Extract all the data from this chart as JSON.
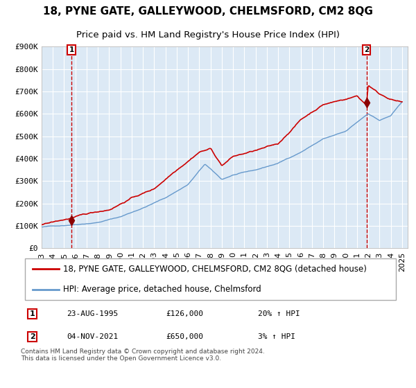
{
  "title": "18, PYNE GATE, GALLEYWOOD, CHELMSFORD, CM2 8QG",
  "subtitle": "Price paid vs. HM Land Registry's House Price Index (HPI)",
  "xlabel": "",
  "ylabel": "",
  "background_color": "#dce9f5",
  "plot_bg_color": "#dce9f5",
  "red_line_color": "#cc0000",
  "blue_line_color": "#6699cc",
  "vline_color": "#cc0000",
  "sale1_year": 1995.65,
  "sale1_price": 126000,
  "sale2_year": 2021.84,
  "sale2_price": 650000,
  "ylim": [
    0,
    900000
  ],
  "xlim_start": 1993,
  "xlim_end": 2025.5,
  "yticks": [
    0,
    100000,
    200000,
    300000,
    400000,
    500000,
    600000,
    700000,
    800000,
    900000
  ],
  "ytick_labels": [
    "£0",
    "£100K",
    "£200K",
    "£300K",
    "£400K",
    "£500K",
    "£600K",
    "£700K",
    "£800K",
    "£900K"
  ],
  "xticks": [
    1993,
    1994,
    1995,
    1996,
    1997,
    1998,
    1999,
    2000,
    2001,
    2002,
    2003,
    2004,
    2005,
    2006,
    2007,
    2008,
    2009,
    2010,
    2011,
    2012,
    2013,
    2014,
    2015,
    2016,
    2017,
    2018,
    2019,
    2020,
    2021,
    2022,
    2023,
    2024,
    2025
  ],
  "legend1_label": "18, PYNE GATE, GALLEYWOOD, CHELMSFORD, CM2 8QG (detached house)",
  "legend2_label": "HPI: Average price, detached house, Chelmsford",
  "annotation1_num": "1",
  "annotation1_date": "23-AUG-1995",
  "annotation1_price": "£126,000",
  "annotation1_hpi": "20% ↑ HPI",
  "annotation2_num": "2",
  "annotation2_date": "04-NOV-2021",
  "annotation2_price": "£650,000",
  "annotation2_hpi": "3% ↑ HPI",
  "footnote": "Contains HM Land Registry data © Crown copyright and database right 2024.\nThis data is licensed under the Open Government Licence v3.0.",
  "title_fontsize": 11,
  "subtitle_fontsize": 9.5,
  "tick_fontsize": 8,
  "legend_fontsize": 8.5
}
